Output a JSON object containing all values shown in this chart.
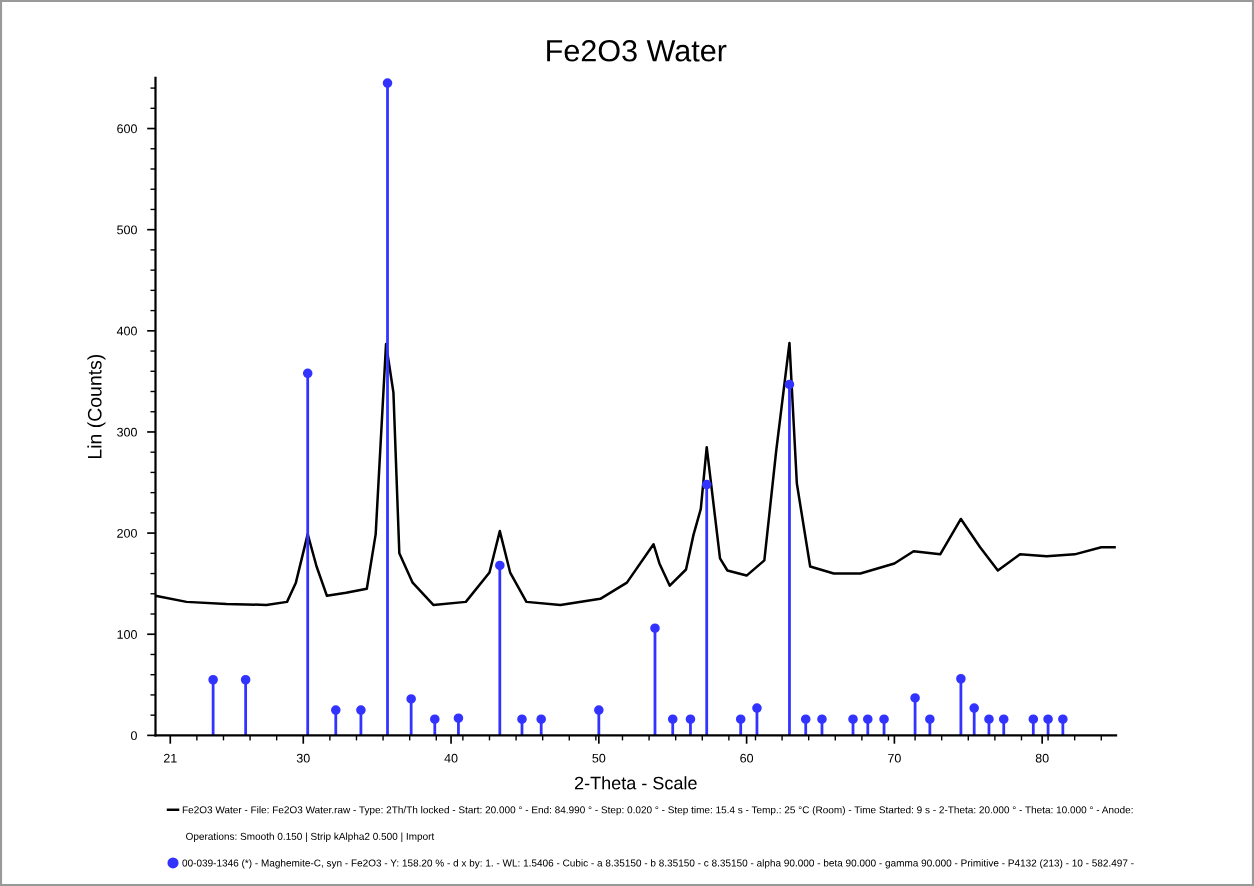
{
  "chart_data": {
    "type": "line",
    "title": "Fe2O3 Water",
    "xlabel": "2-Theta - Scale",
    "ylabel": "Lin (Counts)",
    "xlim": [
      20,
      85
    ],
    "ylim": [
      0,
      650
    ],
    "xticks": [
      21,
      30,
      40,
      50,
      60,
      70,
      80
    ],
    "yticks": [
      0,
      100,
      200,
      300,
      400,
      500,
      600
    ],
    "grid": false,
    "legend": "bottom",
    "series": [
      {
        "name": "Fe2O3 Water - File: Fe2O3 Water.raw - Type: 2Th/Th locked - Start: 20.000 ° - End: 84.990 ° - Step: 0.020 ° - Step time: 15.4 s - Temp.: 25 °C (Room) - Time Started: 9 s - 2-Theta: 20.000 ° - Theta: 10.000 ° - Anode:",
        "color": "#000000",
        "marker": "none",
        "x": [
          20.0,
          22.1,
          24.8,
          27.5,
          28.9,
          29.5,
          30.3,
          30.9,
          31.6,
          32.9,
          34.3,
          34.9,
          35.6,
          36.1,
          36.5,
          37.4,
          38.8,
          41.0,
          42.6,
          43.3,
          44.0,
          45.1,
          47.4,
          50.1,
          51.9,
          53.7,
          54.1,
          54.8,
          55.9,
          56.4,
          56.9,
          57.3,
          58.2,
          58.7,
          60.0,
          61.2,
          62.0,
          62.9,
          63.4,
          64.3,
          65.9,
          67.7,
          70.0,
          71.3,
          73.1,
          74.5,
          75.8,
          77.0,
          78.5,
          80.3,
          82.2,
          84.0,
          84.9
        ],
        "values": [
          138,
          132,
          130,
          129,
          132,
          151,
          199,
          167,
          138,
          141,
          145,
          199,
          387,
          339,
          180,
          151,
          129,
          132,
          161,
          202,
          161,
          132,
          129,
          135,
          151,
          189,
          170,
          148,
          164,
          198,
          224,
          285,
          175,
          163,
          158,
          173,
          281,
          388,
          249,
          167,
          160,
          160,
          170,
          182,
          179,
          214,
          186,
          163,
          179,
          177,
          179,
          186,
          186
        ]
      },
      {
        "name": "00-039-1346 (*) - Maghemite-C, syn - Fe2O3 - Y: 158.20 % - d x by: 1. - WL: 1.5406 - Cubic - a 8.35150 - b 8.35150 - c 8.35150 - alpha 90.000 - beta 90.000 - gamma 90.000 - Primitive - P4132 (213) - 10 - 582.497 -",
        "type": "lollipop",
        "color": "#3333ff",
        "marker": "circle",
        "x": [
          23.9,
          26.1,
          30.3,
          32.2,
          33.9,
          35.7,
          37.3,
          38.9,
          40.5,
          43.3,
          44.8,
          46.1,
          50.0,
          53.8,
          55.0,
          56.2,
          57.3,
          59.6,
          60.7,
          62.9,
          64.0,
          65.1,
          67.2,
          68.2,
          69.3,
          71.4,
          72.4,
          74.5,
          75.4,
          76.4,
          77.4,
          79.4,
          80.4,
          81.4
        ],
        "values": [
          55,
          55,
          358,
          25,
          25,
          645,
          36,
          16,
          17,
          168,
          16,
          16,
          25,
          106,
          16,
          16,
          248,
          16,
          27,
          347,
          16,
          16,
          16,
          16,
          16,
          37,
          16,
          56,
          27,
          16,
          16,
          16,
          16,
          16
        ]
      }
    ],
    "annotations": [
      "Operations: Smooth 0.150 | Strip kAlpha2 0.500 | Import"
    ]
  }
}
